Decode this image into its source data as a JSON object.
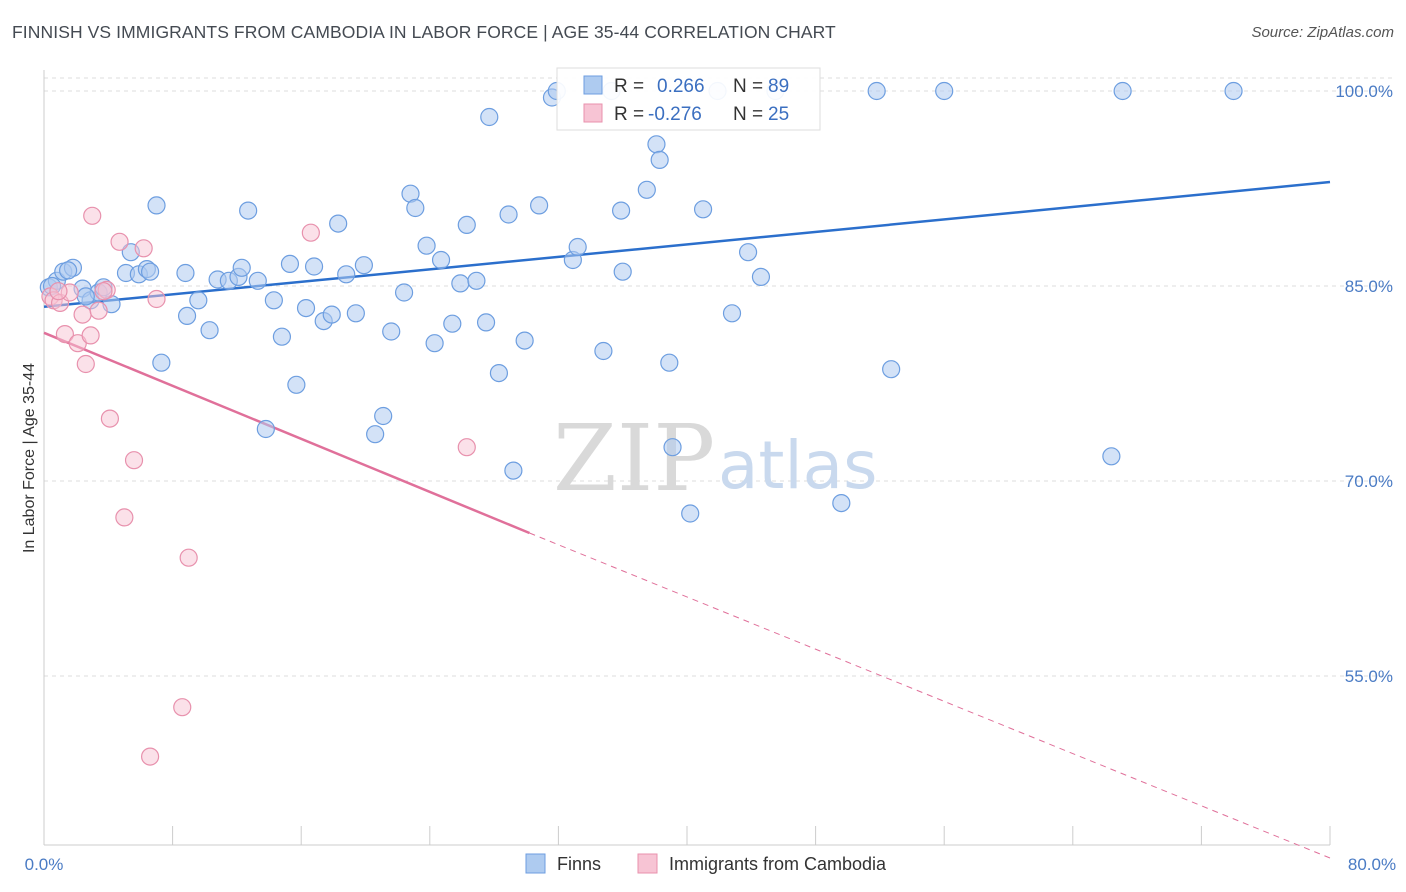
{
  "header": {
    "title": "FINNISH VS IMMIGRANTS FROM CAMBODIA IN LABOR FORCE | AGE 35-44 CORRELATION CHART",
    "source": "Source: ZipAtlas.com"
  },
  "watermark": {
    "zip": "ZIP",
    "atlas": "atlas"
  },
  "colors": {
    "finns_fill": "#aecbf0",
    "finns_stroke": "#6d9ee0",
    "finns_line": "#2b6fcc",
    "cambodia_fill": "#f7c4d4",
    "cambodia_stroke": "#e891ad",
    "cambodia_line": "#e0709a",
    "grid": "#dddddd",
    "axis_label": "#4a7bc4"
  },
  "legend": {
    "rows": [
      {
        "r_label": "R =",
        "r_value": "0.266",
        "n_label": "N =",
        "n_value": "89"
      },
      {
        "r_label": "R =",
        "r_value": "-0.276",
        "n_label": "N =",
        "n_value": "25"
      }
    ]
  },
  "bottom_legend": [
    "Finns",
    "Immigrants from Cambodia"
  ],
  "chart_data": {
    "type": "scatter",
    "title": "FINNISH VS IMMIGRANTS FROM CAMBODIA IN LABOR FORCE | AGE 35-44 CORRELATION CHART",
    "xlabel": "",
    "ylabel": "In Labor Force | Age 35-44",
    "xlim": [
      0,
      80
    ],
    "ylim": [
      42,
      101
    ],
    "x_tick_labels": [
      "0.0%",
      "80.0%"
    ],
    "y_ticks": [
      55,
      70,
      85,
      100
    ],
    "y_tick_labels": [
      "55.0%",
      "70.0%",
      "85.0%",
      "100.0%"
    ],
    "grid": true,
    "legend_placement": "top-center",
    "series": [
      {
        "name": "Finns",
        "trend": {
          "x": [
            0,
            80
          ],
          "y": [
            83.4,
            93.0
          ]
        },
        "points": [
          [
            0.3,
            84.9
          ],
          [
            0.8,
            85.4
          ],
          [
            1.2,
            86.1
          ],
          [
            1.8,
            86.4
          ],
          [
            2.4,
            84.8
          ],
          [
            2.9,
            83.9
          ],
          [
            3.4,
            84.5
          ],
          [
            3.7,
            84.9
          ],
          [
            4.2,
            83.6
          ],
          [
            5.1,
            86.0
          ],
          [
            5.4,
            87.6
          ],
          [
            5.9,
            85.9
          ],
          [
            6.4,
            86.3
          ],
          [
            7.0,
            91.2
          ],
          [
            7.3,
            79.1
          ],
          [
            8.8,
            86.0
          ],
          [
            8.9,
            82.7
          ],
          [
            9.6,
            83.9
          ],
          [
            10.3,
            81.6
          ],
          [
            10.8,
            85.5
          ],
          [
            11.5,
            85.4
          ],
          [
            12.1,
            85.7
          ],
          [
            12.3,
            86.4
          ],
          [
            12.7,
            90.8
          ],
          [
            13.3,
            85.4
          ],
          [
            13.8,
            74.0
          ],
          [
            14.3,
            83.9
          ],
          [
            14.8,
            81.1
          ],
          [
            15.3,
            86.7
          ],
          [
            15.7,
            77.4
          ],
          [
            16.3,
            83.3
          ],
          [
            16.8,
            86.5
          ],
          [
            17.4,
            82.3
          ],
          [
            17.9,
            82.8
          ],
          [
            18.3,
            89.8
          ],
          [
            18.8,
            85.9
          ],
          [
            19.4,
            82.9
          ],
          [
            19.9,
            86.6
          ],
          [
            20.6,
            73.6
          ],
          [
            21.1,
            75.0
          ],
          [
            21.6,
            81.5
          ],
          [
            22.4,
            84.5
          ],
          [
            22.8,
            92.1
          ],
          [
            23.1,
            91.0
          ],
          [
            23.8,
            88.1
          ],
          [
            24.3,
            80.6
          ],
          [
            24.7,
            87.0
          ],
          [
            25.4,
            82.1
          ],
          [
            25.9,
            85.2
          ],
          [
            26.3,
            89.7
          ],
          [
            26.9,
            85.4
          ],
          [
            27.5,
            82.2
          ],
          [
            27.7,
            98.0
          ],
          [
            28.3,
            78.3
          ],
          [
            28.9,
            90.5
          ],
          [
            29.2,
            70.8
          ],
          [
            29.9,
            80.8
          ],
          [
            30.8,
            91.2
          ],
          [
            31.6,
            99.5
          ],
          [
            31.9,
            100
          ],
          [
            32.9,
            87.0
          ],
          [
            33.2,
            88.0
          ],
          [
            34.8,
            80.0
          ],
          [
            35.3,
            100
          ],
          [
            35.9,
            90.8
          ],
          [
            36.0,
            86.1
          ],
          [
            37.5,
            92.4
          ],
          [
            38.1,
            95.9
          ],
          [
            38.3,
            94.7
          ],
          [
            38.9,
            79.1
          ],
          [
            39.1,
            72.6
          ],
          [
            40.2,
            67.5
          ],
          [
            41.0,
            90.9
          ],
          [
            41.9,
            100
          ],
          [
            42.8,
            82.9
          ],
          [
            43.8,
            87.6
          ],
          [
            44.6,
            85.7
          ],
          [
            45.5,
            100
          ],
          [
            49.6,
            68.3
          ],
          [
            51.8,
            100
          ],
          [
            52.7,
            78.6
          ],
          [
            56.0,
            100
          ],
          [
            66.4,
            71.9
          ],
          [
            67.1,
            100
          ],
          [
            74.0,
            100
          ],
          [
            0.5,
            85.0
          ],
          [
            1.5,
            86.2
          ],
          [
            2.6,
            84.2
          ],
          [
            6.6,
            86.1
          ]
        ]
      },
      {
        "name": "Immigrants from Cambodia",
        "trend": {
          "x": [
            0,
            30.2
          ],
          "y": [
            81.4,
            66.0
          ]
        },
        "trend_extension": {
          "x": [
            30.2,
            80
          ],
          "y": [
            66.0,
            41.0
          ]
        },
        "points": [
          [
            0.4,
            84.2
          ],
          [
            0.6,
            83.9
          ],
          [
            1.0,
            83.7
          ],
          [
            1.3,
            81.3
          ],
          [
            1.6,
            84.5
          ],
          [
            2.1,
            80.6
          ],
          [
            2.4,
            82.8
          ],
          [
            2.6,
            79.0
          ],
          [
            2.9,
            81.2
          ],
          [
            3.0,
            90.4
          ],
          [
            3.4,
            83.1
          ],
          [
            3.9,
            84.7
          ],
          [
            4.1,
            74.8
          ],
          [
            4.7,
            88.4
          ],
          [
            5.0,
            67.2
          ],
          [
            5.6,
            71.6
          ],
          [
            6.2,
            87.9
          ],
          [
            7.0,
            84.0
          ],
          [
            8.6,
            52.6
          ],
          [
            9.0,
            64.1
          ],
          [
            6.6,
            48.8
          ],
          [
            16.6,
            89.1
          ],
          [
            26.3,
            72.6
          ],
          [
            0.9,
            84.6
          ],
          [
            3.7,
            84.6
          ]
        ]
      }
    ]
  }
}
